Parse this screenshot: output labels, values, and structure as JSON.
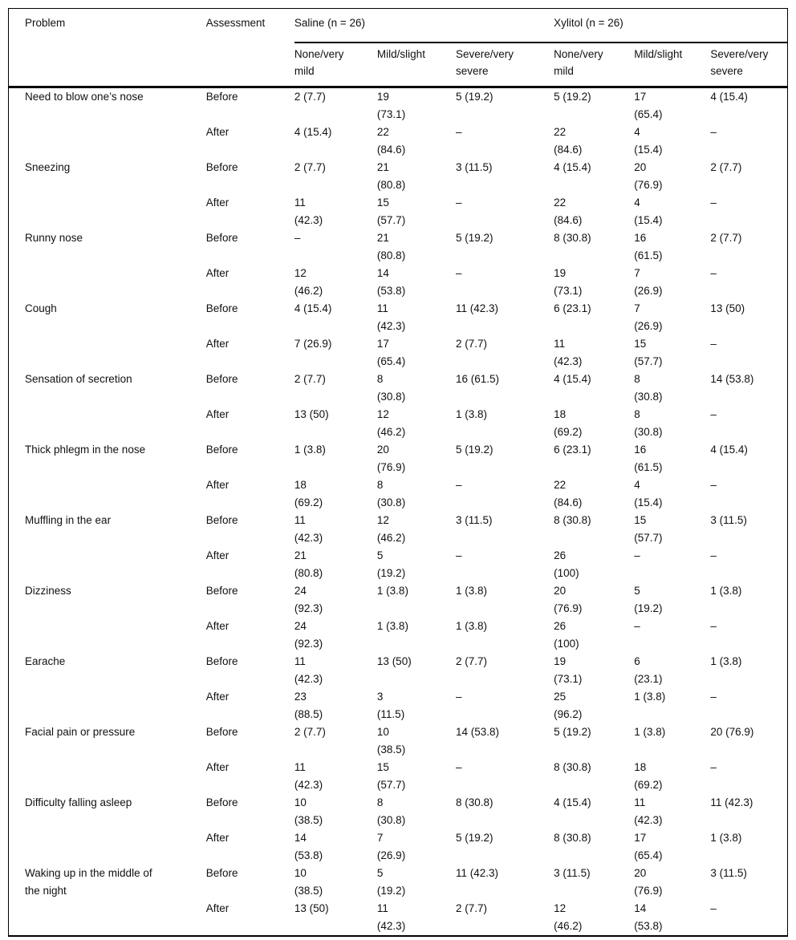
{
  "table": {
    "header": {
      "problem": "Problem",
      "assessment": "Assessment",
      "groups": [
        {
          "label": "Saline (n = 26)",
          "subcols": [
            "None/very\nmild",
            "Mild/slight",
            "Severe/very\nsevere"
          ]
        },
        {
          "label": "Xylitol (n = 26)",
          "subcols": [
            "None/very\nmild",
            "Mild/slight",
            "Severe/very\nsevere"
          ]
        }
      ]
    },
    "rows": [
      {
        "problem": "Need to blow one’s nose",
        "assessments": [
          {
            "label": "Before",
            "values": [
              "2 (7.7)",
              "19\n(73.1)",
              "5 (19.2)",
              "5 (19.2)",
              "17\n(65.4)",
              "4 (15.4)"
            ]
          },
          {
            "label": "After",
            "values": [
              "4 (15.4)",
              "22\n(84.6)",
              "–",
              "22\n(84.6)",
              "4\n(15.4)",
              "–"
            ]
          }
        ]
      },
      {
        "problem": "Sneezing",
        "assessments": [
          {
            "label": "Before",
            "values": [
              "2 (7.7)",
              "21\n(80.8)",
              "3 (11.5)",
              "4 (15.4)",
              "20\n(76.9)",
              "2 (7.7)"
            ]
          },
          {
            "label": "After",
            "values": [
              "11\n(42.3)",
              "15\n(57.7)",
              "–",
              "22\n(84.6)",
              "4\n(15.4)",
              "–"
            ]
          }
        ]
      },
      {
        "problem": "Runny nose",
        "assessments": [
          {
            "label": "Before",
            "values": [
              "–",
              "21\n(80.8)",
              "5 (19.2)",
              "8 (30.8)",
              "16\n(61.5)",
              "2 (7.7)"
            ]
          },
          {
            "label": "After",
            "values": [
              "12\n(46.2)",
              "14\n(53.8)",
              "–",
              "19\n(73.1)",
              "7\n(26.9)",
              "–"
            ]
          }
        ]
      },
      {
        "problem": "Cough",
        "assessments": [
          {
            "label": "Before",
            "values": [
              "4 (15.4)",
              "11\n(42.3)",
              "11 (42.3)",
              "6 (23.1)",
              "7\n(26.9)",
              "13 (50)"
            ]
          },
          {
            "label": "After",
            "values": [
              "7 (26.9)",
              "17\n(65.4)",
              "2 (7.7)",
              "11\n(42.3)",
              "15\n(57.7)",
              "–"
            ]
          }
        ]
      },
      {
        "problem": "Sensation of secretion",
        "assessments": [
          {
            "label": "Before",
            "values": [
              "2 (7.7)",
              "8\n(30.8)",
              "16 (61.5)",
              "4 (15.4)",
              "8\n(30.8)",
              "14 (53.8)"
            ]
          },
          {
            "label": "After",
            "values": [
              "13 (50)",
              "12\n(46.2)",
              "1 (3.8)",
              "18\n(69.2)",
              "8\n(30.8)",
              "–"
            ]
          }
        ]
      },
      {
        "problem": "Thick phlegm in the nose",
        "assessments": [
          {
            "label": "Before",
            "values": [
              "1 (3.8)",
              "20\n(76.9)",
              "5 (19.2)",
              "6 (23.1)",
              "16\n(61.5)",
              "4 (15.4)"
            ]
          },
          {
            "label": "After",
            "values": [
              "18\n(69.2)",
              "8\n(30.8)",
              "–",
              "22\n(84.6)",
              "4\n(15.4)",
              "–"
            ]
          }
        ]
      },
      {
        "problem": "Muffling in the ear",
        "assessments": [
          {
            "label": "Before",
            "values": [
              "11\n(42.3)",
              "12\n(46.2)",
              "3 (11.5)",
              "8 (30.8)",
              "15\n(57.7)",
              "3 (11.5)"
            ]
          },
          {
            "label": "After",
            "values": [
              "21\n(80.8)",
              "5\n(19.2)",
              "–",
              "26\n(100)",
              "–",
              "–"
            ]
          }
        ]
      },
      {
        "problem": "Dizziness",
        "assessments": [
          {
            "label": "Before",
            "values": [
              "24\n(92.3)",
              "1 (3.8)",
              "1 (3.8)",
              "20\n(76.9)",
              "5\n(19.2)",
              "1 (3.8)"
            ]
          },
          {
            "label": "After",
            "values": [
              "24\n(92.3)",
              "1 (3.8)",
              "1 (3.8)",
              "26\n(100)",
              "–",
              "–"
            ]
          }
        ]
      },
      {
        "problem": "Earache",
        "assessments": [
          {
            "label": "Before",
            "values": [
              "11\n(42.3)",
              "13 (50)",
              "2 (7.7)",
              "19\n(73.1)",
              "6\n(23.1)",
              "1 (3.8)"
            ]
          },
          {
            "label": "After",
            "values": [
              "23\n(88.5)",
              "3\n(11.5)",
              "–",
              "25\n(96.2)",
              "1 (3.8)",
              "–"
            ]
          }
        ]
      },
      {
        "problem": "Facial pain or pressure",
        "assessments": [
          {
            "label": "Before",
            "values": [
              "2 (7.7)",
              "10\n(38.5)",
              "14 (53.8)",
              "5 (19.2)",
              "1 (3.8)",
              "20 (76.9)"
            ]
          },
          {
            "label": "After",
            "values": [
              "11\n(42.3)",
              "15\n(57.7)",
              "–",
              "8 (30.8)",
              "18\n(69.2)",
              "–"
            ]
          }
        ]
      },
      {
        "problem": "Difficulty falling asleep",
        "assessments": [
          {
            "label": "Before",
            "values": [
              "10\n(38.5)",
              "8\n(30.8)",
              "8 (30.8)",
              "4 (15.4)",
              "11\n(42.3)",
              "11 (42.3)"
            ]
          },
          {
            "label": "After",
            "values": [
              "14\n(53.8)",
              "7\n(26.9)",
              "5 (19.2)",
              "8 (30.8)",
              "17\n(65.4)",
              "1 (3.8)"
            ]
          }
        ]
      },
      {
        "problem": "Waking up in the middle of\nthe night",
        "assessments": [
          {
            "label": "Before",
            "values": [
              "10\n(38.5)",
              "5\n(19.2)",
              "11 (42.3)",
              "3 (11.5)",
              "20\n(76.9)",
              "3 (11.5)"
            ]
          },
          {
            "label": "After",
            "values": [
              "13 (50)",
              "11\n(42.3)",
              "2 (7.7)",
              "12\n(46.2)",
              "14\n(53.8)",
              "–"
            ]
          }
        ]
      }
    ]
  }
}
